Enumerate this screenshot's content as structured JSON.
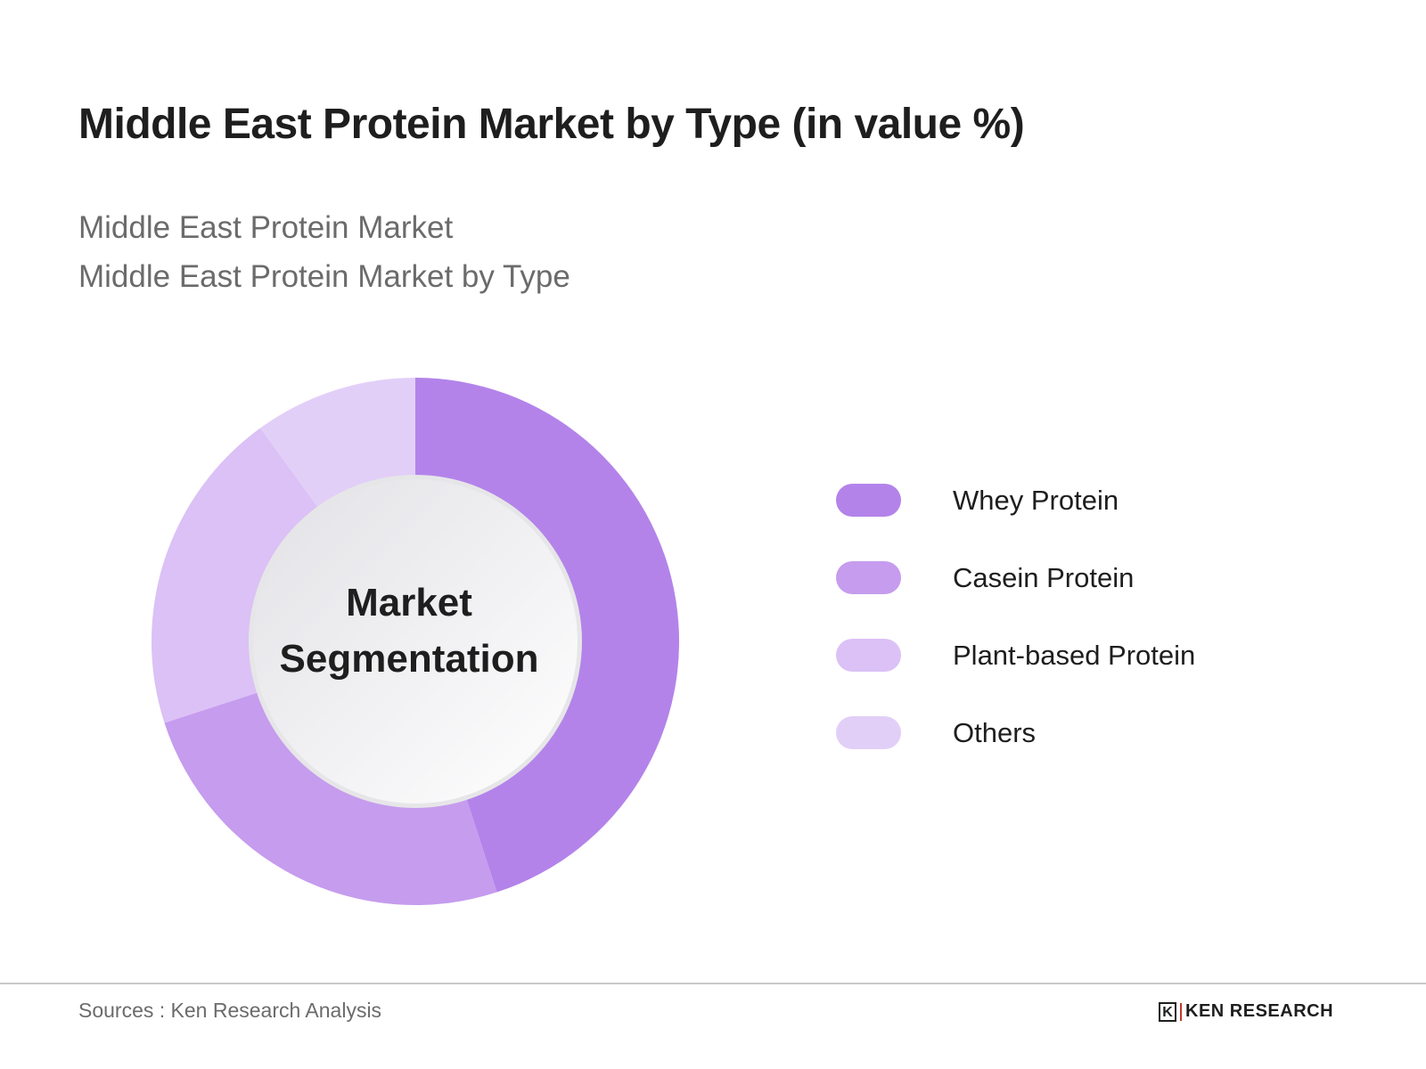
{
  "header": {
    "title": "Middle East Protein Market by Type (in value %)",
    "subtitle_1": "Middle East Protein Market",
    "subtitle_2": "Middle East Protein Market by Type"
  },
  "center_label": {
    "line1": "Market",
    "line2": "Segmentation"
  },
  "legend": [
    {
      "label": "Whey Protein",
      "color": "#b383ea"
    },
    {
      "label": "Casein Protein",
      "color": "#c69cee"
    },
    {
      "label": "Plant-based Protein",
      "color": "#dbc1f6"
    },
    {
      "label": "Others",
      "color": "#e2cff8"
    }
  ],
  "footer": {
    "source": "Sources : Ken Research Analysis",
    "logo_mark": "K",
    "logo_text": "KEN RESEARCH"
  },
  "chart_data": {
    "type": "pie",
    "variant": "donut",
    "title": "Middle East Protein Market by Type (in value %)",
    "subtitle": [
      "Middle East Protein Market",
      "Middle East Protein Market by Type"
    ],
    "center_text": "Market Segmentation",
    "categories": [
      "Whey Protein",
      "Casein Protein",
      "Plant-based Protein",
      "Others"
    ],
    "values": [
      45,
      25,
      20,
      10
    ],
    "colors": [
      "#b383ea",
      "#c69cee",
      "#dbc1f6",
      "#e2cff8"
    ],
    "legend_position": "right",
    "data_labels": false
  }
}
